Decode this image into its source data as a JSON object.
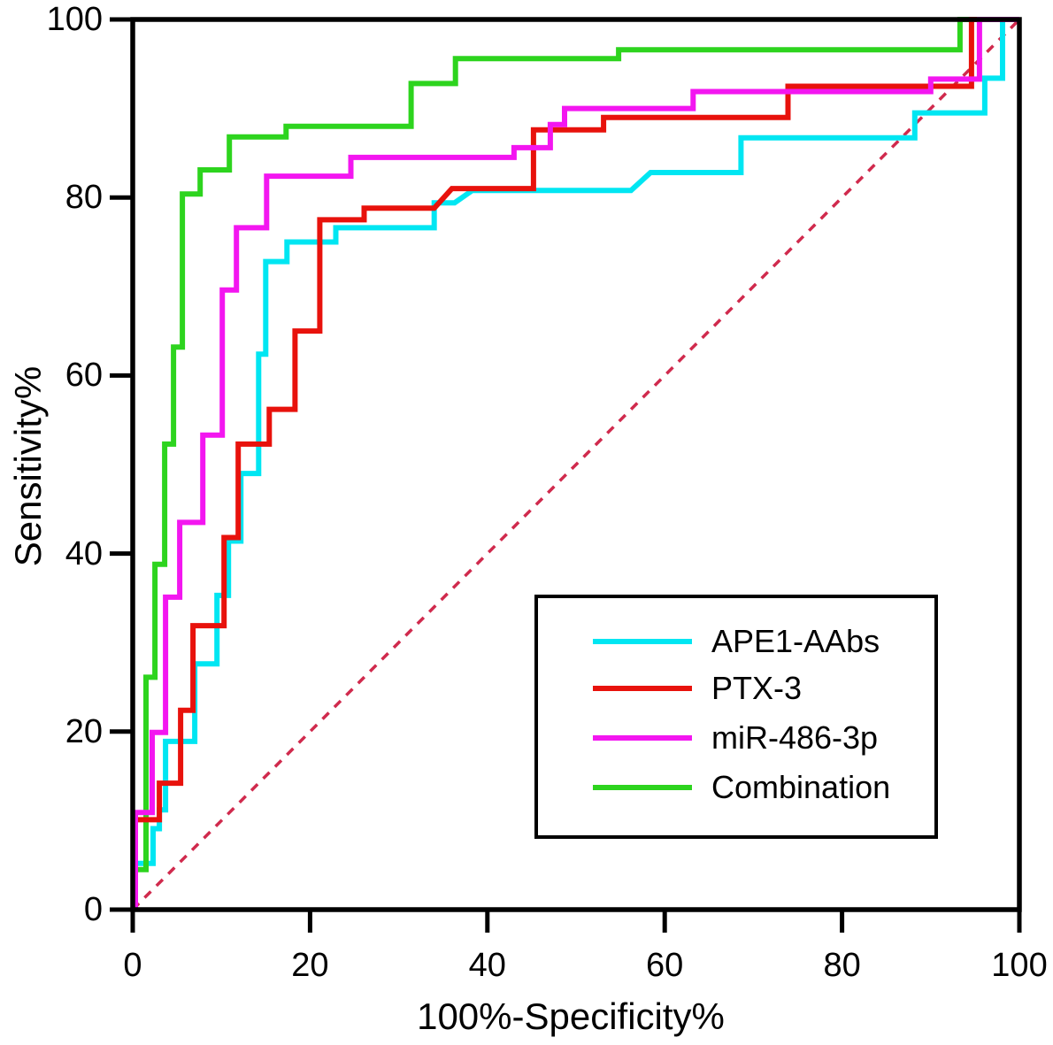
{
  "figure": {
    "background": "#ffffff",
    "axis_color": "#000000"
  },
  "chart_data": {
    "type": "line",
    "subtype": "roc-step-curves",
    "title": "",
    "xlabel": "100%-Specificity%",
    "ylabel": "Sensitivity%",
    "xlim": [
      0,
      100
    ],
    "ylim": [
      0,
      100
    ],
    "x_ticks": [
      "0",
      "20",
      "40",
      "60",
      "80",
      "100"
    ],
    "y_ticks": [
      "0",
      "20",
      "40",
      "60",
      "80",
      "100"
    ],
    "grid": false,
    "legend_position": "lower-right-inside",
    "reference_line": {
      "name": "chance-diagonal",
      "from": [
        0,
        0
      ],
      "to": [
        100,
        100
      ],
      "color": "#d02a4d",
      "style": "dashed"
    },
    "series": [
      {
        "name": "APE1-AAbs",
        "color": "#00e6f2",
        "points": [
          [
            0.3,
            0
          ],
          [
            0.3,
            5.2
          ],
          [
            2.3,
            5.2
          ],
          [
            2.3,
            9.1
          ],
          [
            3.0,
            9.1
          ],
          [
            3.0,
            11.2
          ],
          [
            3.7,
            11.2
          ],
          [
            3.7,
            18.9
          ],
          [
            7.0,
            18.9
          ],
          [
            7.0,
            27.6
          ],
          [
            9.5,
            27.6
          ],
          [
            9.5,
            35.3
          ],
          [
            10.8,
            35.3
          ],
          [
            10.8,
            41.4
          ],
          [
            12.2,
            41.4
          ],
          [
            12.2,
            49.0
          ],
          [
            14.2,
            49.0
          ],
          [
            14.2,
            62.4
          ],
          [
            15.0,
            62.4
          ],
          [
            15.0,
            72.8
          ],
          [
            17.4,
            72.8
          ],
          [
            17.4,
            75.0
          ],
          [
            22.9,
            75.0
          ],
          [
            22.9,
            76.6
          ],
          [
            34.0,
            76.6
          ],
          [
            34.0,
            79.4
          ],
          [
            36.3,
            79.4
          ],
          [
            38.3,
            80.8
          ],
          [
            56.2,
            80.8
          ],
          [
            58.4,
            82.8
          ],
          [
            68.6,
            82.8
          ],
          [
            68.6,
            86.7
          ],
          [
            88.2,
            86.7
          ],
          [
            88.2,
            89.5
          ],
          [
            96.1,
            89.5
          ],
          [
            96.1,
            93.4
          ],
          [
            98.1,
            93.4
          ],
          [
            98.1,
            100
          ],
          [
            100,
            100
          ]
        ]
      },
      {
        "name": "PTX-3",
        "color": "#e8120c",
        "points": [
          [
            0.3,
            0
          ],
          [
            0.3,
            10.1
          ],
          [
            3.0,
            10.1
          ],
          [
            3.0,
            14.2
          ],
          [
            5.4,
            14.2
          ],
          [
            5.4,
            22.4
          ],
          [
            6.8,
            22.4
          ],
          [
            6.8,
            31.9
          ],
          [
            10.3,
            31.9
          ],
          [
            10.3,
            41.8
          ],
          [
            11.9,
            41.8
          ],
          [
            11.9,
            52.3
          ],
          [
            15.4,
            52.3
          ],
          [
            15.4,
            56.2
          ],
          [
            18.3,
            56.2
          ],
          [
            18.3,
            65.0
          ],
          [
            21.1,
            65.0
          ],
          [
            21.1,
            77.5
          ],
          [
            26.1,
            77.5
          ],
          [
            26.1,
            78.8
          ],
          [
            34.0,
            78.8
          ],
          [
            36.0,
            81.0
          ],
          [
            45.2,
            81.0
          ],
          [
            45.2,
            87.6
          ],
          [
            53.1,
            87.6
          ],
          [
            53.1,
            89.0
          ],
          [
            73.9,
            89.0
          ],
          [
            73.9,
            92.5
          ],
          [
            94.6,
            92.5
          ],
          [
            94.6,
            100
          ],
          [
            100,
            100
          ]
        ]
      },
      {
        "name": "miR-486-3p",
        "color": "#f316f0",
        "points": [
          [
            0.3,
            0
          ],
          [
            0.3,
            10.9
          ],
          [
            2.2,
            10.9
          ],
          [
            2.2,
            19.9
          ],
          [
            3.7,
            19.9
          ],
          [
            3.7,
            35.1
          ],
          [
            5.3,
            35.1
          ],
          [
            5.3,
            43.5
          ],
          [
            7.9,
            43.5
          ],
          [
            7.9,
            53.3
          ],
          [
            10.1,
            53.3
          ],
          [
            10.1,
            69.6
          ],
          [
            11.7,
            69.6
          ],
          [
            11.7,
            76.6
          ],
          [
            15.1,
            76.6
          ],
          [
            15.1,
            82.4
          ],
          [
            24.6,
            82.4
          ],
          [
            24.6,
            84.5
          ],
          [
            43.0,
            84.5
          ],
          [
            43.0,
            85.6
          ],
          [
            47.1,
            85.6
          ],
          [
            47.1,
            88.2
          ],
          [
            48.7,
            88.2
          ],
          [
            48.7,
            90.0
          ],
          [
            63.2,
            90.0
          ],
          [
            63.2,
            91.9
          ],
          [
            90.0,
            91.9
          ],
          [
            90.0,
            93.3
          ],
          [
            95.5,
            93.3
          ],
          [
            95.5,
            100
          ],
          [
            100,
            100
          ]
        ]
      },
      {
        "name": "Combination",
        "color": "#2dd41e",
        "points": [
          [
            0.3,
            0
          ],
          [
            0.3,
            4.5
          ],
          [
            1.5,
            4.5
          ],
          [
            1.5,
            26.1
          ],
          [
            2.5,
            26.1
          ],
          [
            2.5,
            38.8
          ],
          [
            3.6,
            38.8
          ],
          [
            3.6,
            52.3
          ],
          [
            4.6,
            52.3
          ],
          [
            4.6,
            63.2
          ],
          [
            5.6,
            63.2
          ],
          [
            5.6,
            80.4
          ],
          [
            7.6,
            80.4
          ],
          [
            7.6,
            83.1
          ],
          [
            10.9,
            83.1
          ],
          [
            10.9,
            86.8
          ],
          [
            17.3,
            86.8
          ],
          [
            17.3,
            88.0
          ],
          [
            31.4,
            88.0
          ],
          [
            31.4,
            92.8
          ],
          [
            36.4,
            92.8
          ],
          [
            36.4,
            95.6
          ],
          [
            54.8,
            95.6
          ],
          [
            54.8,
            96.6
          ],
          [
            93.3,
            96.6
          ],
          [
            93.3,
            100
          ],
          [
            100,
            100
          ]
        ]
      }
    ]
  }
}
